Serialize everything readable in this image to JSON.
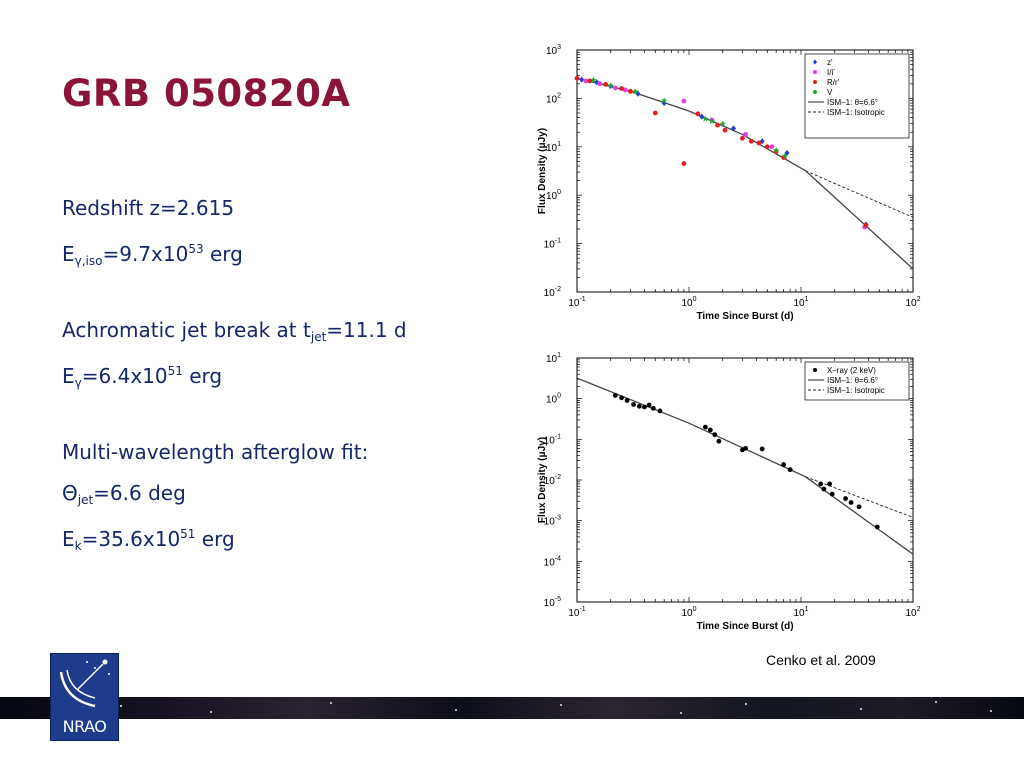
{
  "title": "GRB 050820A",
  "facts": {
    "redshift": "Redshift z=2.615",
    "e_iso": {
      "main": "E",
      "sub": "γ,iso",
      "mid": "=9.7x10",
      "sup": "53",
      "tail": " erg"
    },
    "jet_break": {
      "main": "Achromatic jet break at t",
      "sub": "jet",
      "tail": "=11.1 d"
    },
    "e_gamma": {
      "main": "E",
      "sub": "γ",
      "mid": "=6.4x10",
      "sup": "51",
      "tail": " erg"
    },
    "fit_heading": "Multi-wavelength afterglow fit:",
    "theta_jet": {
      "main": "Θ",
      "sub": "jet",
      "tail": "=6.6 deg"
    },
    "e_k": {
      "main": "E",
      "sub": "k",
      "mid": "=35.6x10",
      "sup": "51",
      "tail": " erg"
    }
  },
  "citation": "Cenko et al. 2009",
  "logo_text": "NRAO",
  "chart_data": [
    {
      "type": "scatter",
      "xlabel": "Time Since Burst (d)",
      "ylabel": "Flux Density (μJy)",
      "xscale": "log",
      "yscale": "log",
      "xlim": [
        0.1,
        100
      ],
      "ylim": [
        0.01,
        1000
      ],
      "x_ticks": [
        {
          "v": 0.1,
          "b": "10",
          "e": "-1"
        },
        {
          "v": 1,
          "b": "10",
          "e": "0"
        },
        {
          "v": 10,
          "b": "10",
          "e": "1"
        },
        {
          "v": 100,
          "b": "10",
          "e": "2"
        }
      ],
      "y_ticks": [
        {
          "v": 0.01,
          "b": "10",
          "e": "-2"
        },
        {
          "v": 0.1,
          "b": "10",
          "e": "-1"
        },
        {
          "v": 1,
          "b": "10",
          "e": "0"
        },
        {
          "v": 10,
          "b": "10",
          "e": "1"
        },
        {
          "v": 100,
          "b": "10",
          "e": "2"
        },
        {
          "v": 1000,
          "b": "10",
          "e": "3"
        }
      ],
      "legend_position": "top-right",
      "series": [
        {
          "name": "z'",
          "color": "#1f3fd6",
          "marker": "diamond",
          "points": [
            [
              0.11,
              245
            ],
            [
              0.15,
              215
            ],
            [
              0.2,
              180
            ],
            [
              0.35,
              125
            ],
            [
              0.6,
              80
            ],
            [
              1.3,
              42
            ],
            [
              2.5,
              24
            ],
            [
              4.5,
              13
            ],
            [
              7.5,
              7.5
            ],
            [
              38,
              0.25
            ]
          ]
        },
        {
          "name": "I/i'",
          "color": "#e23fe0",
          "marker": "circle",
          "points": [
            [
              0.12,
              230
            ],
            [
              0.16,
              200
            ],
            [
              0.22,
              165
            ],
            [
              0.27,
              150
            ],
            [
              0.9,
              88
            ],
            [
              1.6,
              36
            ],
            [
              3.2,
              18
            ],
            [
              5.5,
              10
            ],
            [
              37,
              0.22
            ]
          ]
        },
        {
          "name": "R/r'",
          "color": "#e01e1e",
          "marker": "circle",
          "points": [
            [
              0.1,
              260
            ],
            [
              0.13,
              230
            ],
            [
              0.18,
              195
            ],
            [
              0.25,
              160
            ],
            [
              0.3,
              140
            ],
            [
              0.5,
              50
            ],
            [
              0.9,
              4.5
            ],
            [
              1.2,
              48
            ],
            [
              1.8,
              28
            ],
            [
              2.1,
              22
            ],
            [
              3,
              15
            ],
            [
              3.6,
              13
            ],
            [
              4.2,
              12
            ],
            [
              5,
              10
            ],
            [
              6,
              8
            ],
            [
              7,
              6
            ],
            [
              38,
              0.24
            ]
          ]
        },
        {
          "name": "V",
          "color": "#1faa2a",
          "marker": "star",
          "points": [
            [
              0.14,
              240
            ],
            [
              0.2,
              185
            ],
            [
              0.33,
              140
            ],
            [
              0.6,
              90
            ],
            [
              1.4,
              38
            ],
            [
              1.6,
              34
            ],
            [
              2,
              30
            ],
            [
              6,
              8.5
            ],
            [
              7.2,
              6.5
            ]
          ]
        }
      ],
      "models": [
        {
          "name": "ISM–1: θ=6.6°",
          "style": "solid",
          "points": [
            [
              0.1,
              260
            ],
            [
              0.3,
              140
            ],
            [
              1,
              55
            ],
            [
              3,
              18
            ],
            [
              11,
              3.2
            ],
            [
              100,
              0.03
            ]
          ]
        },
        {
          "name": "ISM–1: Isotropic",
          "style": "dashed",
          "points": [
            [
              11,
              3.2
            ],
            [
              100,
              0.35
            ]
          ]
        }
      ]
    },
    {
      "type": "scatter",
      "xlabel": "Time Since Burst (d)",
      "ylabel": "Flux Density (μJy)",
      "xscale": "log",
      "yscale": "log",
      "xlim": [
        0.1,
        100
      ],
      "ylim": [
        1e-05,
        10
      ],
      "x_ticks": [
        {
          "v": 0.1,
          "b": "10",
          "e": "-1"
        },
        {
          "v": 1,
          "b": "10",
          "e": "0"
        },
        {
          "v": 10,
          "b": "10",
          "e": "1"
        },
        {
          "v": 100,
          "b": "10",
          "e": "2"
        }
      ],
      "y_ticks": [
        {
          "v": 1e-05,
          "b": "10",
          "e": "-5"
        },
        {
          "v": 0.0001,
          "b": "10",
          "e": "-4"
        },
        {
          "v": 0.001,
          "b": "10",
          "e": "-3"
        },
        {
          "v": 0.01,
          "b": "10",
          "e": "-2"
        },
        {
          "v": 0.1,
          "b": "10",
          "e": "-1"
        },
        {
          "v": 1,
          "b": "10",
          "e": "0"
        },
        {
          "v": 10,
          "b": "10",
          "e": "1"
        }
      ],
      "legend_position": "top-right",
      "series": [
        {
          "name": "X–ray (2 keV)",
          "color": "#000000",
          "marker": "circle",
          "points": [
            [
              0.22,
              1.2
            ],
            [
              0.25,
              1.05
            ],
            [
              0.28,
              0.9
            ],
            [
              0.32,
              0.72
            ],
            [
              0.36,
              0.65
            ],
            [
              0.4,
              0.62
            ],
            [
              0.44,
              0.7
            ],
            [
              0.48,
              0.58
            ],
            [
              0.55,
              0.5
            ],
            [
              1.4,
              0.2
            ],
            [
              1.55,
              0.17
            ],
            [
              1.7,
              0.13
            ],
            [
              1.85,
              0.09
            ],
            [
              3,
              0.055
            ],
            [
              3.2,
              0.06
            ],
            [
              4.5,
              0.058
            ],
            [
              7,
              0.024
            ],
            [
              8,
              0.018
            ],
            [
              15,
              0.008
            ],
            [
              16,
              0.006
            ],
            [
              18,
              0.008
            ],
            [
              19,
              0.0045
            ],
            [
              25,
              0.0035
            ],
            [
              28,
              0.0028
            ],
            [
              33,
              0.0022
            ],
            [
              48,
              0.0007
            ]
          ]
        }
      ],
      "models": [
        {
          "name": "ISM–1: θ=6.6°",
          "style": "solid",
          "points": [
            [
              0.1,
              3.2
            ],
            [
              1,
              0.25
            ],
            [
              11,
              0.012
            ],
            [
              100,
              0.00015
            ]
          ]
        },
        {
          "name": "ISM–1: Isotropic",
          "style": "dashed",
          "points": [
            [
              11,
              0.012
            ],
            [
              100,
              0.0012
            ]
          ]
        }
      ]
    }
  ]
}
